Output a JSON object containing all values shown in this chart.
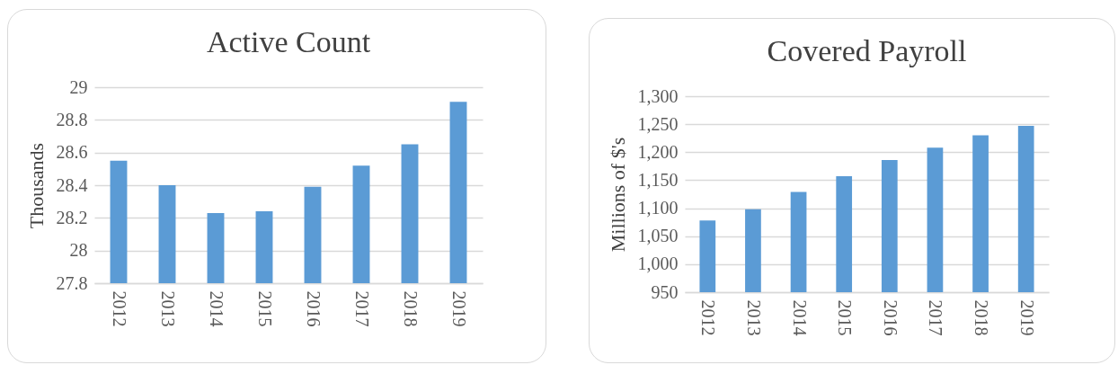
{
  "chart_data": [
    {
      "type": "bar",
      "title": "Active Count",
      "ylabel": "Thousands",
      "categories": [
        "2012",
        "2013",
        "2014",
        "2015",
        "2016",
        "2017",
        "2018",
        "2019"
      ],
      "values": [
        28.55,
        28.4,
        28.23,
        28.24,
        28.39,
        28.52,
        28.65,
        28.91
      ],
      "color": "#5b9bd5",
      "ylim": [
        27.8,
        29
      ],
      "yticks": [
        27.8,
        28,
        28.2,
        28.4,
        28.6,
        28.8,
        29
      ],
      "grid": "y"
    },
    {
      "type": "bar",
      "title": "Covered Payroll",
      "ylabel": "Millions of $'s",
      "categories": [
        "2012",
        "2013",
        "2014",
        "2015",
        "2016",
        "2017",
        "2018",
        "2019"
      ],
      "values": [
        1078,
        1098,
        1129,
        1157,
        1186,
        1208,
        1230,
        1247
      ],
      "color": "#5b9bd5",
      "ylim": [
        950,
        1300
      ],
      "yticks": [
        {
          "value": 950,
          "label": "950"
        },
        {
          "value": 1000,
          "label": "1,000"
        },
        {
          "value": 1050,
          "label": "1,050"
        },
        {
          "value": 1100,
          "label": "1,100"
        },
        {
          "value": 1150,
          "label": "1,150"
        },
        {
          "value": 1200,
          "label": "1,200"
        },
        {
          "value": 1250,
          "label": "1,250"
        },
        {
          "value": 1300,
          "label": "1,300"
        }
      ],
      "grid": "y"
    }
  ]
}
